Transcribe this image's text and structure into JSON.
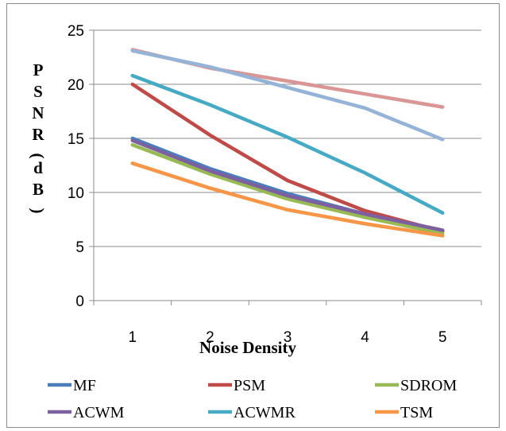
{
  "chart_data": {
    "type": "line",
    "x": [
      1,
      2,
      3,
      4,
      5
    ],
    "xlabel": "Noise Density",
    "ylabel": "PSNR(dB)",
    "ylim": [
      0,
      25
    ],
    "yticks": [
      0,
      5,
      10,
      15,
      20,
      25
    ],
    "grid": true,
    "legend_position": "bottom",
    "series": [
      {
        "name": "MF",
        "color": "#4a7ebb",
        "values": [
          15.0,
          12.2,
          9.9,
          8.0,
          6.5
        ]
      },
      {
        "name": "PSM",
        "color": "#be4b48",
        "values": [
          20.0,
          15.3,
          11.1,
          8.3,
          6.4
        ]
      },
      {
        "name": "SDROM",
        "color": "#98b954",
        "values": [
          14.4,
          11.7,
          9.4,
          7.7,
          6.2
        ]
      },
      {
        "name": "ACWM",
        "color": "#7d60a0",
        "values": [
          14.8,
          12.0,
          9.7,
          8.0,
          6.5
        ]
      },
      {
        "name": "ACWMR",
        "color": "#46aac5",
        "values": [
          20.8,
          18.1,
          15.1,
          11.8,
          8.1
        ]
      },
      {
        "name": "TSM",
        "color": "#f79646",
        "values": [
          12.7,
          10.4,
          8.4,
          7.1,
          6.0
        ]
      },
      {
        "name": "",
        "color": "#d99694",
        "values": [
          23.2,
          21.5,
          20.3,
          19.1,
          17.9
        ]
      },
      {
        "name": "",
        "color": "#95b3d7",
        "values": [
          23.1,
          21.6,
          19.7,
          17.8,
          14.9
        ]
      }
    ]
  }
}
